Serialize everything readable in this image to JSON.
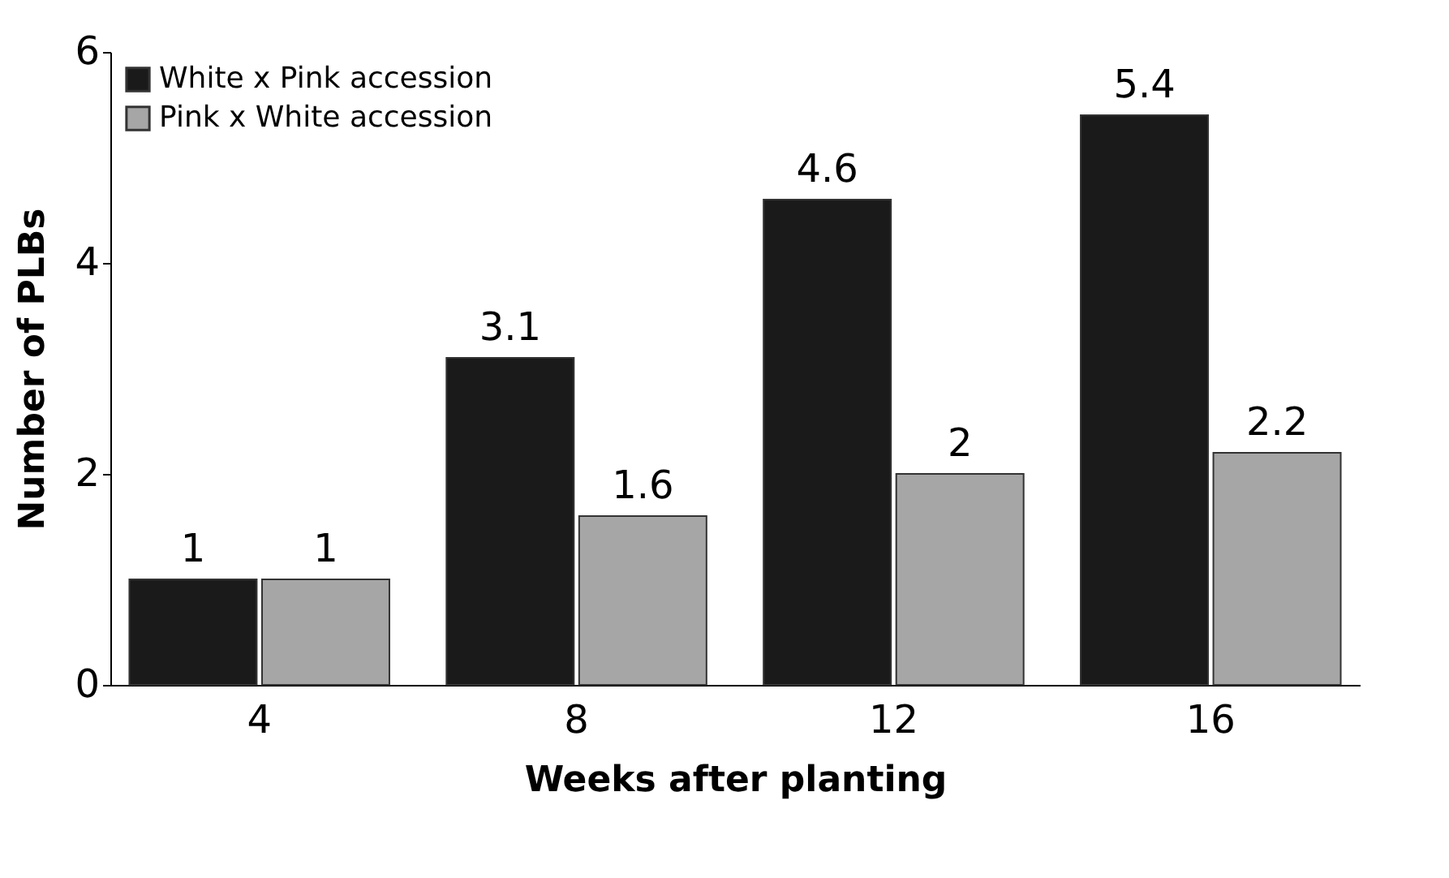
{
  "chart_data": {
    "type": "bar",
    "xlabel": "Weeks after planting",
    "ylabel": "Number of PLBs",
    "categories": [
      "4",
      "8",
      "12",
      "16"
    ],
    "series": [
      {
        "name": "White x Pink accession",
        "color": "#1a1a1a",
        "values": [
          1,
          3.1,
          4.6,
          5.4
        ]
      },
      {
        "name": "Pink x White accession",
        "color": "#a6a6a6",
        "values": [
          1,
          1.6,
          2,
          2.2
        ]
      }
    ],
    "ylim": [
      0,
      6
    ],
    "yticks": [
      0,
      2,
      4,
      6
    ],
    "grid": false,
    "legend": "top left",
    "data_labels": true
  }
}
